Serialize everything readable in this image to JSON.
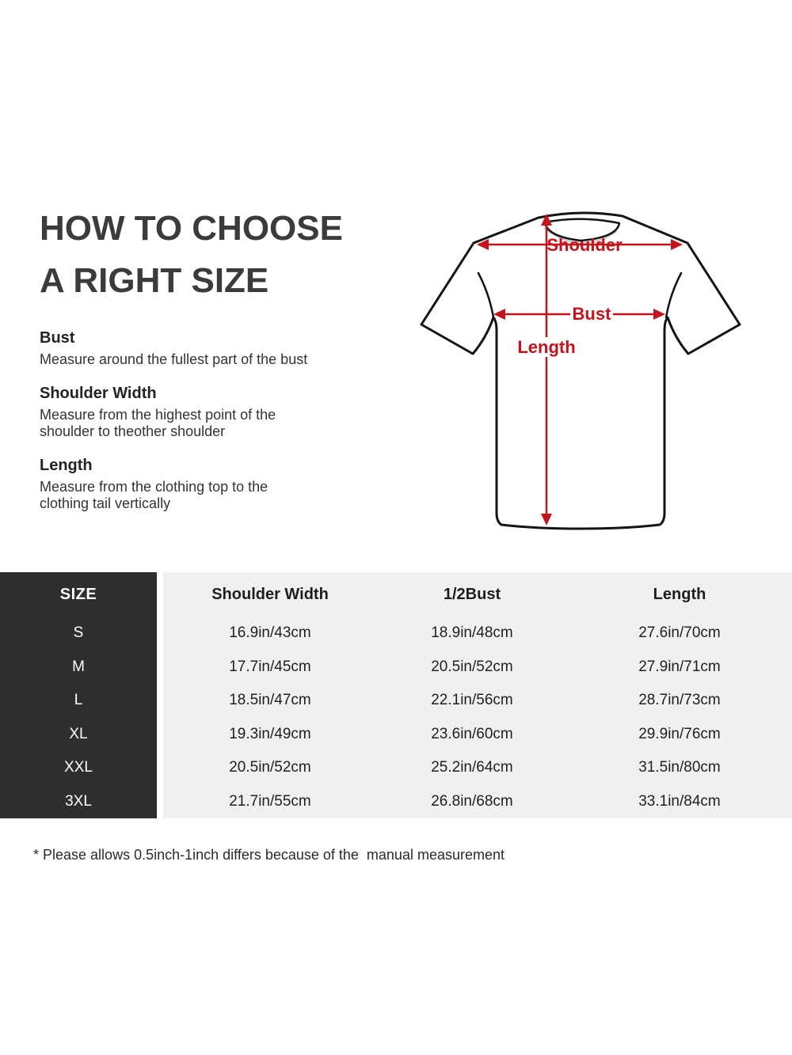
{
  "title": {
    "line1": "HOW TO CHOOSE",
    "line2": "A RIGHT SIZE"
  },
  "instructions": [
    {
      "heading": "Bust",
      "text": "Measure around the fullest part of the bust"
    },
    {
      "heading": "Shoulder Width",
      "text": "Measure from the highest point of the\nshoulder to theother shoulder"
    },
    {
      "heading": "Length",
      "text": "Measure from the clothing top to the\nclothing tail vertically"
    }
  ],
  "diagram": {
    "shoulder_label": "Shoulder",
    "bust_label": "Bust",
    "length_label": "Length"
  },
  "size_table": {
    "header": {
      "size": "SIZE",
      "columns": [
        "Shoulder Width",
        "1/2Bust",
        "Length"
      ]
    },
    "rows": [
      {
        "size": "S",
        "shoulder": "16.9in/43cm",
        "bust": "18.9in/48cm",
        "length": "27.6in/70cm"
      },
      {
        "size": "M",
        "shoulder": "17.7in/45cm",
        "bust": "20.5in/52cm",
        "length": "27.9in/71cm"
      },
      {
        "size": "L",
        "shoulder": "18.5in/47cm",
        "bust": "22.1in/56cm",
        "length": "28.7in/73cm"
      },
      {
        "size": "XL",
        "shoulder": "19.3in/49cm",
        "bust": "23.6in/60cm",
        "length": "29.9in/76cm"
      },
      {
        "size": "XXL",
        "shoulder": "20.5in/52cm",
        "bust": "25.2in/64cm",
        "length": "31.5in/80cm"
      },
      {
        "size": "3XL",
        "shoulder": "21.7in/55cm",
        "bust": "26.8in/68cm",
        "length": "33.1in/84cm"
      }
    ]
  },
  "footnote": "* Please allows 0.5inch-1inch differs because of the  manual measurement",
  "colors": {
    "arrow_red": "#c3141c",
    "table_dark": "#2f2d2e",
    "table_light": "#f1f0ef",
    "title_gray": "#3b3b3b"
  }
}
